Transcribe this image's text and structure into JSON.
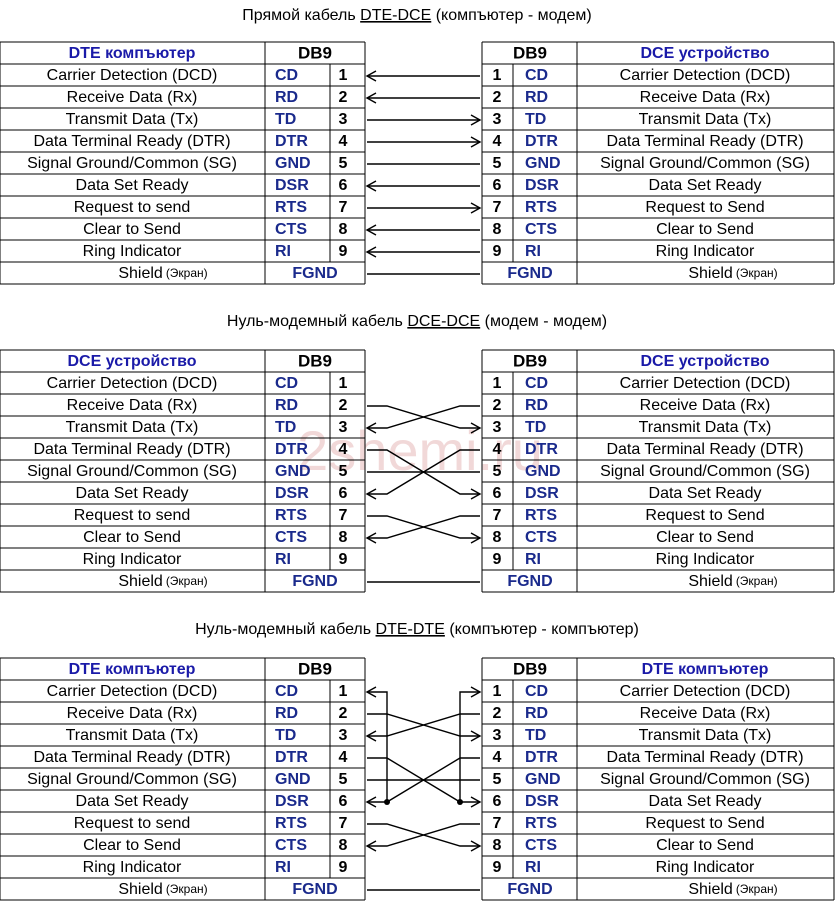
{
  "watermark": "2shemi.ru",
  "sections": [
    {
      "title": {
        "before": "Прямой кабель ",
        "link": "DTE-DCE",
        "after": " (компъютер - модем)"
      },
      "left_header": "DTE компъютер",
      "left_db": "DB9",
      "right_db": "DB9",
      "right_header": "DCE устройство",
      "rows": [
        {
          "left_label": "Carrier Detection (DCD)",
          "left_signal": "CD",
          "left_pin": 1,
          "right_pin": 1,
          "right_signal": "CD",
          "right_label": "Carrier Detection (DCD)"
        },
        {
          "left_label": "Receive Data (Rx)",
          "left_signal": "RD",
          "left_pin": 2,
          "right_pin": 2,
          "right_signal": "RD",
          "right_label": "Receive Data (Rx)"
        },
        {
          "left_label": "Transmit Data (Tx)",
          "left_signal": "TD",
          "left_pin": 3,
          "right_pin": 3,
          "right_signal": "TD",
          "right_label": "Transmit Data (Tx)"
        },
        {
          "left_label": "Data Terminal Ready (DTR)",
          "left_signal": "DTR",
          "left_pin": 4,
          "right_pin": 4,
          "right_signal": "DTR",
          "right_label": "Data Terminal Ready (DTR)"
        },
        {
          "left_label": "Signal Ground/Common (SG)",
          "left_signal": "GND",
          "left_pin": 5,
          "right_pin": 5,
          "right_signal": "GND",
          "right_label": "Signal Ground/Common (SG)"
        },
        {
          "left_label": "Data Set Ready",
          "left_signal": "DSR",
          "left_pin": 6,
          "right_pin": 6,
          "right_signal": "DSR",
          "right_label": "Data Set Ready"
        },
        {
          "left_label": "Request to send",
          "left_signal": "RTS",
          "left_pin": 7,
          "right_pin": 7,
          "right_signal": "RTS",
          "right_label": "Request to Send"
        },
        {
          "left_label": "Clear to Send",
          "left_signal": "CTS",
          "left_pin": 8,
          "right_pin": 8,
          "right_signal": "CTS",
          "right_label": "Clear to Send"
        },
        {
          "left_label": "Ring Indicator",
          "left_signal": "RI",
          "left_pin": 9,
          "right_pin": 9,
          "right_signal": "RI",
          "right_label": "Ring Indicator"
        }
      ],
      "shield": {
        "left_label": "Shield",
        "left_note": "(Экран)",
        "left_signal": "FGND",
        "right_signal": "FGND",
        "right_label": "Shield",
        "right_note": "(Экран)"
      }
    },
    {
      "title": {
        "before": "Нуль-модемный кабель ",
        "link": "DCE-DCE",
        "after": " (модем - модем)"
      },
      "left_header": "DCE устройство",
      "left_db": "DB9",
      "right_db": "DB9",
      "right_header": "DCE устройство",
      "rows": [
        {
          "left_label": "Carrier Detection (DCD)",
          "left_signal": "CD",
          "left_pin": 1,
          "right_pin": 1,
          "right_signal": "CD",
          "right_label": "Carrier Detection (DCD)"
        },
        {
          "left_label": "Receive Data (Rx)",
          "left_signal": "RD",
          "left_pin": 2,
          "right_pin": 2,
          "right_signal": "RD",
          "right_label": "Receive Data (Rx)"
        },
        {
          "left_label": "Transmit Data (Tx)",
          "left_signal": "TD",
          "left_pin": 3,
          "right_pin": 3,
          "right_signal": "TD",
          "right_label": "Transmit Data (Tx)"
        },
        {
          "left_label": "Data Terminal Ready (DTR)",
          "left_signal": "DTR",
          "left_pin": 4,
          "right_pin": 4,
          "right_signal": "DTR",
          "right_label": "Data Terminal Ready (DTR)"
        },
        {
          "left_label": "Signal Ground/Common (SG)",
          "left_signal": "GND",
          "left_pin": 5,
          "right_pin": 5,
          "right_signal": "GND",
          "right_label": "Signal Ground/Common (SG)"
        },
        {
          "left_label": "Data Set Ready",
          "left_signal": "DSR",
          "left_pin": 6,
          "right_pin": 6,
          "right_signal": "DSR",
          "right_label": "Data Set Ready"
        },
        {
          "left_label": "Request to send",
          "left_signal": "RTS",
          "left_pin": 7,
          "right_pin": 7,
          "right_signal": "RTS",
          "right_label": "Request to Send"
        },
        {
          "left_label": "Clear to Send",
          "left_signal": "CTS",
          "left_pin": 8,
          "right_pin": 8,
          "right_signal": "CTS",
          "right_label": "Clear to Send"
        },
        {
          "left_label": "Ring Indicator",
          "left_signal": "RI",
          "left_pin": 9,
          "right_pin": 9,
          "right_signal": "RI",
          "right_label": "Ring Indicator"
        }
      ],
      "shield": {
        "left_label": "Shield",
        "left_note": "(Экран)",
        "left_signal": "FGND",
        "right_signal": "FGND",
        "right_label": "Shield",
        "right_note": "(Экран)"
      }
    },
    {
      "title": {
        "before": "Нуль-модемный кабель ",
        "link": "DTE-DTE",
        "after": " (компъютер - компъютер)"
      },
      "left_header": "DTE компъютер",
      "left_db": "DB9",
      "right_db": "DB9",
      "right_header": "DTE компъютер",
      "rows": [
        {
          "left_label": "Carrier Detection (DCD)",
          "left_signal": "CD",
          "left_pin": 1,
          "right_pin": 1,
          "right_signal": "CD",
          "right_label": "Carrier Detection (DCD)"
        },
        {
          "left_label": "Receive Data (Rx)",
          "left_signal": "RD",
          "left_pin": 2,
          "right_pin": 2,
          "right_signal": "RD",
          "right_label": "Receive Data (Rx)"
        },
        {
          "left_label": "Transmit Data (Tx)",
          "left_signal": "TD",
          "left_pin": 3,
          "right_pin": 3,
          "right_signal": "TD",
          "right_label": "Transmit Data (Tx)"
        },
        {
          "left_label": "Data Terminal Ready (DTR)",
          "left_signal": "DTR",
          "left_pin": 4,
          "right_pin": 4,
          "right_signal": "DTR",
          "right_label": "Data Terminal Ready (DTR)"
        },
        {
          "left_label": "Signal Ground/Common (SG)",
          "left_signal": "GND",
          "left_pin": 5,
          "right_pin": 5,
          "right_signal": "GND",
          "right_label": "Signal Ground/Common (SG)"
        },
        {
          "left_label": "Data Set Ready",
          "left_signal": "DSR",
          "left_pin": 6,
          "right_pin": 6,
          "right_signal": "DSR",
          "right_label": "Data Set Ready"
        },
        {
          "left_label": "Request to send",
          "left_signal": "RTS",
          "left_pin": 7,
          "right_pin": 7,
          "right_signal": "RTS",
          "right_label": "Request to Send"
        },
        {
          "left_label": "Clear to Send",
          "left_signal": "CTS",
          "left_pin": 8,
          "right_pin": 8,
          "right_signal": "CTS",
          "right_label": "Clear to Send"
        },
        {
          "left_label": "Ring Indicator",
          "left_signal": "RI",
          "left_pin": 9,
          "right_pin": 9,
          "right_signal": "RI",
          "right_label": "Ring Indicator"
        }
      ],
      "shield": {
        "left_label": "Shield",
        "left_note": "(Экран)",
        "left_signal": "FGND",
        "right_signal": "FGND",
        "right_label": "Shield",
        "right_note": "(Экран)"
      }
    }
  ]
}
